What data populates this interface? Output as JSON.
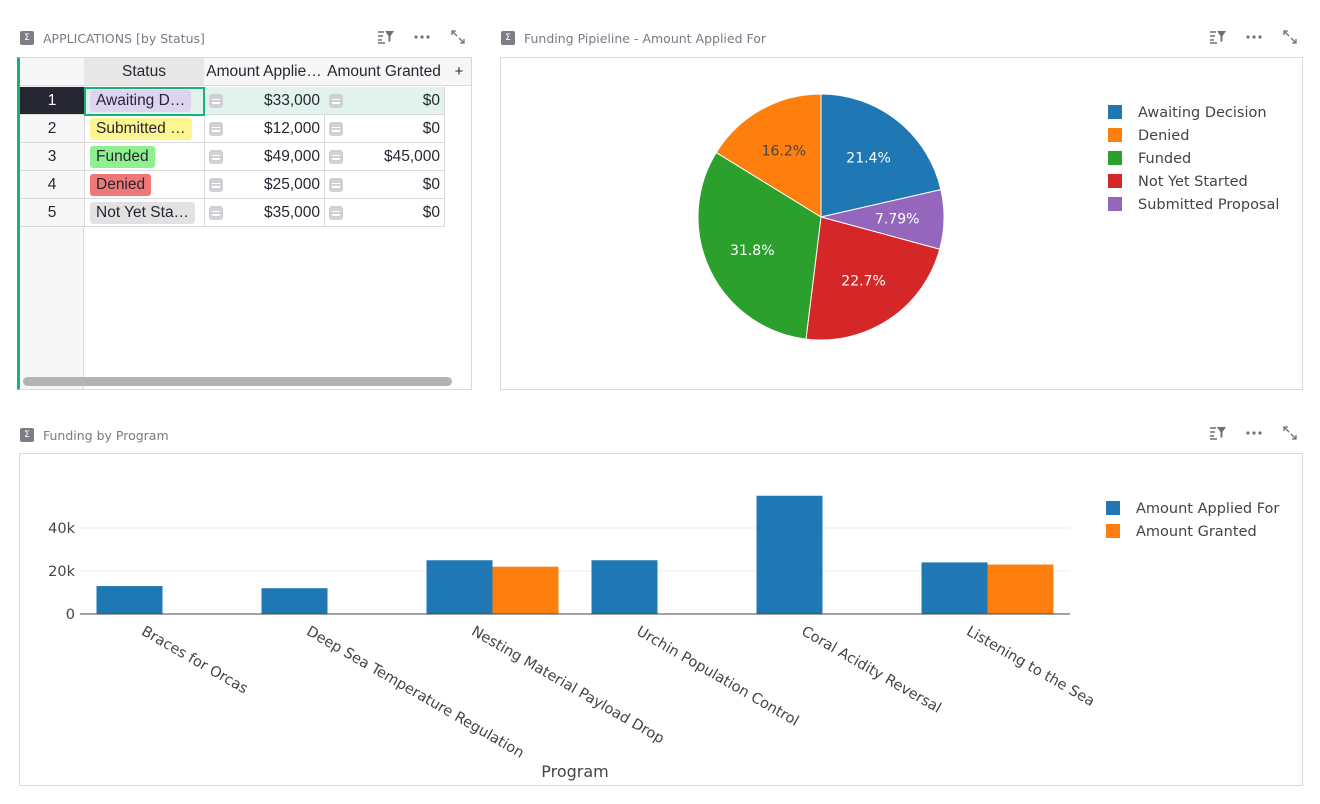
{
  "table_widget": {
    "title": "APPLICATIONS [by Status]",
    "columns": [
      "Status",
      "Amount Applie…",
      "Amount Granted"
    ],
    "add_column_label": "+",
    "rows": [
      {
        "num": "1",
        "status": "Awaiting D…",
        "status_color": "#dcd4f0",
        "applied": "$33,000",
        "granted": "$0"
      },
      {
        "num": "2",
        "status": "Submitted …",
        "status_color": "#fdf58f",
        "applied": "$12,000",
        "granted": "$0"
      },
      {
        "num": "3",
        "status": "Funded",
        "status_color": "#8ef08e",
        "applied": "$49,000",
        "granted": "$45,000"
      },
      {
        "num": "4",
        "status": "Denied",
        "status_color": "#f07777",
        "applied": "$25,000",
        "granted": "$0"
      },
      {
        "num": "5",
        "status": "Not Yet Sta…",
        "status_color": "#e2e2e2",
        "applied": "$35,000",
        "granted": "$0"
      }
    ]
  },
  "pie_widget": {
    "title": "Funding Pipieline - Amount Applied For"
  },
  "bar_widget": {
    "title": "Funding by Program"
  },
  "icons": {
    "sort_filter": "sort-filter-icon",
    "more": "more-options-icon",
    "expand": "expand-icon",
    "sigma": "sigma-icon"
  },
  "chart_data": [
    {
      "type": "pie",
      "labels": [
        "Awaiting Decision",
        "Denied",
        "Funded",
        "Not Yet Started",
        "Submitted Proposal"
      ],
      "slices": [
        {
          "label": "Awaiting Decision",
          "value": 21.4,
          "text": "21.4%",
          "color": "#1f77b4"
        },
        {
          "label": "Submitted Proposal",
          "value": 7.79,
          "text": "7.79%",
          "color": "#9467bd"
        },
        {
          "label": "Not Yet Started",
          "value": 22.7,
          "text": "22.7%",
          "color": "#d62728"
        },
        {
          "label": "Funded",
          "value": 31.8,
          "text": "31.8%",
          "color": "#2ca02c"
        },
        {
          "label": "Denied",
          "value": 16.2,
          "text": "16.2%",
          "color": "#ff7f0e"
        }
      ],
      "legend": [
        {
          "name": "Awaiting Decision",
          "color": "#1f77b4"
        },
        {
          "name": "Denied",
          "color": "#ff7f0e"
        },
        {
          "name": "Funded",
          "color": "#2ca02c"
        },
        {
          "name": "Not Yet Started",
          "color": "#d62728"
        },
        {
          "name": "Submitted Proposal",
          "color": "#9467bd"
        }
      ],
      "legend_position": "right"
    },
    {
      "type": "bar",
      "categories": [
        "Braces for Orcas",
        "Deep Sea Temperature Regulation",
        "Nesting Material Payload Drop",
        "Urchin Population Control",
        "Coral Acidity Reversal",
        "Listening to the Sea"
      ],
      "series": [
        {
          "name": "Amount Applied For",
          "color": "#1f77b4",
          "values": [
            13000,
            12000,
            25000,
            25000,
            55000,
            24000
          ]
        },
        {
          "name": "Amount Granted",
          "color": "#ff7f0e",
          "values": [
            0,
            0,
            22000,
            0,
            0,
            23000
          ]
        }
      ],
      "xlabel": "Program",
      "ylabel": "",
      "yticks": [
        0,
        20000,
        40000
      ],
      "ytick_labels": [
        "0",
        "20k",
        "40k"
      ],
      "ylim": [
        0,
        60000
      ],
      "grid": true,
      "legend_position": "right"
    }
  ]
}
